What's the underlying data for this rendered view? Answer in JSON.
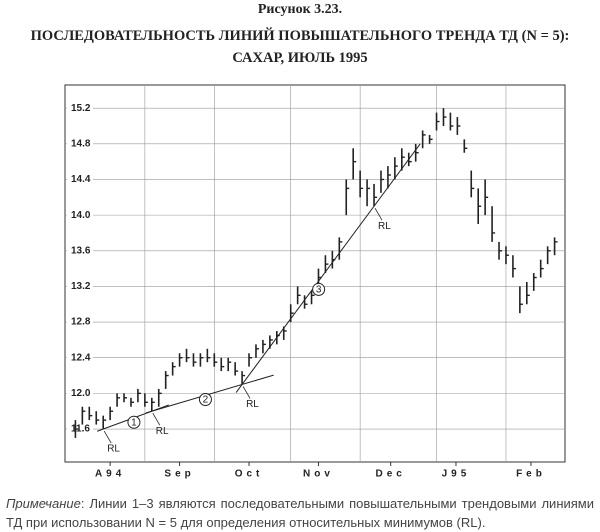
{
  "chart_data": {
    "type": "ohlc",
    "figure_label": "Рисунок 3.23.",
    "title": [
      "ПОСЛЕДОВАТЕЛЬНОСТЬ ЛИНИЙ ПОВЫШАТЕЛЬНОГО ТРЕНДА ТД (N = 5):",
      "САХАР, ИЮЛЬ 1995"
    ],
    "x": [
      0,
      1,
      2,
      3,
      4,
      5,
      6,
      7,
      8,
      9,
      10,
      11,
      12,
      13,
      14,
      15,
      16,
      17,
      18,
      19,
      20,
      21,
      22,
      23,
      24,
      25,
      26,
      27,
      28,
      29,
      30,
      31,
      32,
      33,
      34,
      35,
      36,
      37,
      38,
      39,
      40,
      41,
      42,
      43,
      44,
      45,
      46,
      47,
      48,
      49,
      50,
      51,
      52,
      53,
      54,
      55,
      56,
      57,
      58,
      59,
      60,
      61,
      62,
      63,
      64,
      65,
      66,
      67,
      68,
      69
    ],
    "high": [
      11.7,
      11.85,
      11.85,
      11.8,
      11.75,
      11.85,
      12.0,
      12.0,
      11.95,
      12.05,
      12.0,
      11.95,
      12.05,
      12.25,
      12.35,
      12.45,
      12.5,
      12.45,
      12.45,
      12.5,
      12.45,
      12.4,
      12.4,
      12.35,
      12.25,
      12.45,
      12.55,
      12.6,
      12.65,
      12.7,
      12.75,
      13.0,
      13.2,
      13.1,
      13.15,
      13.4,
      13.55,
      13.6,
      13.75,
      14.4,
      14.75,
      14.5,
      14.4,
      14.35,
      14.5,
      14.55,
      14.65,
      14.75,
      14.7,
      14.8,
      14.95,
      14.9,
      15.15,
      15.2,
      15.15,
      15.1,
      14.85,
      14.5,
      14.3,
      14.4,
      14.1,
      13.7,
      13.65,
      13.55,
      13.2,
      13.25,
      13.35,
      13.5,
      13.65,
      13.75
    ],
    "low": [
      11.5,
      11.65,
      11.7,
      11.65,
      11.6,
      11.7,
      11.85,
      11.9,
      11.85,
      11.9,
      11.85,
      11.8,
      11.85,
      12.05,
      12.2,
      12.3,
      12.35,
      12.3,
      12.3,
      12.35,
      12.3,
      12.25,
      12.25,
      12.2,
      12.1,
      12.3,
      12.4,
      12.45,
      12.5,
      12.55,
      12.6,
      12.8,
      13.0,
      12.95,
      13.0,
      13.2,
      13.35,
      13.4,
      13.5,
      14.0,
      14.4,
      14.2,
      14.1,
      14.1,
      14.25,
      14.3,
      14.4,
      14.5,
      14.55,
      14.6,
      14.75,
      14.8,
      14.95,
      15.0,
      14.95,
      14.9,
      14.7,
      14.2,
      13.9,
      14.0,
      13.7,
      13.5,
      13.45,
      13.3,
      12.9,
      13.0,
      13.15,
      13.3,
      13.45,
      13.55
    ],
    "close": [
      11.6,
      11.8,
      11.75,
      11.7,
      11.7,
      11.8,
      11.95,
      11.95,
      11.9,
      12.0,
      11.9,
      11.9,
      12.0,
      12.2,
      12.3,
      12.4,
      12.4,
      12.35,
      12.4,
      12.4,
      12.35,
      12.3,
      12.35,
      12.25,
      12.2,
      12.4,
      12.5,
      12.55,
      12.6,
      12.65,
      12.7,
      12.9,
      13.1,
      13.0,
      13.1,
      13.3,
      13.45,
      13.5,
      13.7,
      14.3,
      14.6,
      14.3,
      14.3,
      14.2,
      14.4,
      14.45,
      14.55,
      14.65,
      14.6,
      14.7,
      14.9,
      14.85,
      15.05,
      15.1,
      15.0,
      15.0,
      14.75,
      14.3,
      14.1,
      14.2,
      13.8,
      13.6,
      13.55,
      13.4,
      13.0,
      13.1,
      13.3,
      13.4,
      13.6,
      13.7
    ],
    "color": "#222222",
    "xlim": [
      -1.5,
      70.5
    ],
    "xticks": [
      {
        "value": 5,
        "label": "A94"
      },
      {
        "value": 15,
        "label": "Sep"
      },
      {
        "value": 25,
        "label": "Oct"
      },
      {
        "value": 35,
        "label": "Nov"
      },
      {
        "value": 45.4,
        "label": "Dec"
      },
      {
        "value": 54.8,
        "label": "J95"
      },
      {
        "value": 65.6,
        "label": "Feb"
      }
    ],
    "xgrid": [
      10,
      20,
      31,
      41,
      52,
      62
    ],
    "ylim": [
      11.23,
      15.46
    ],
    "yticks": [
      11.6,
      {
        "value": 12,
        "label": "12.0"
      },
      12.4,
      12.8,
      13.2,
      13.6,
      {
        "value": 14,
        "label": "14.0"
      },
      14.4,
      14.8,
      15.2
    ],
    "grid": true,
    "rl_label": "RL",
    "rl_points": [
      4,
      11,
      24,
      43
    ],
    "trend_lines": [
      {
        "label": "1",
        "from": 4,
        "to": 11
      },
      {
        "label": "2",
        "from": 11,
        "to": 24
      },
      {
        "label": "3",
        "from": 24,
        "to": 43
      }
    ],
    "note_label": "Примечание",
    "note": ": Линии 1–3 являются последовательными повышательными трендовыми линиями ТД при использовании N = 5 для определения относительных минимумов (RL)."
  }
}
